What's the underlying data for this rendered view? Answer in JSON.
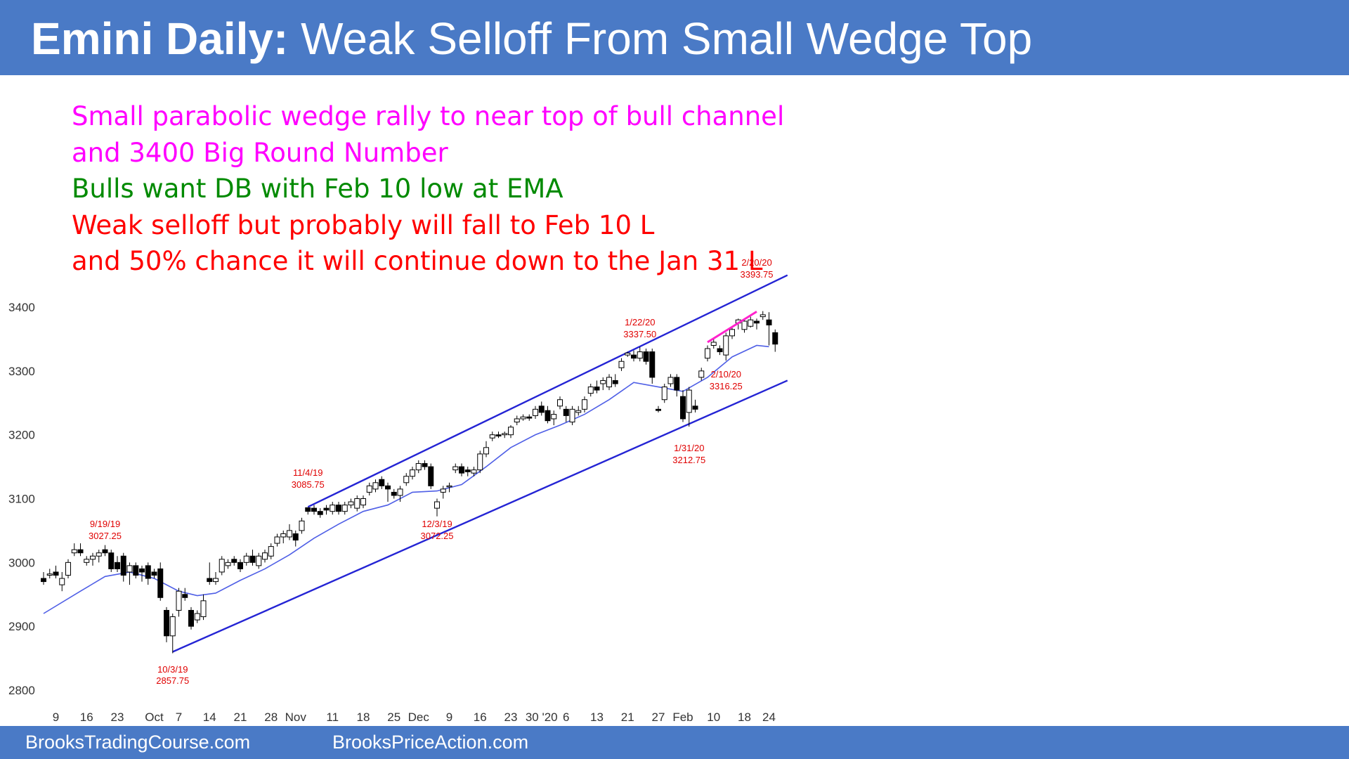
{
  "header": {
    "title_bold": "Emini Daily:",
    "title_rest": " Weak Selloff From Small Wedge Top"
  },
  "notes": [
    {
      "text": "Small parabolic wedge rally to near top of bull channel",
      "color": "#ff00ff"
    },
    {
      "text": "and 3400 Big Round Number",
      "color": "#ff00ff"
    },
    {
      "text": "Bulls want DB with Feb 10 low at EMA",
      "color": "#008a00"
    },
    {
      "text": "Weak selloff but probably will fall to Feb 10 L",
      "color": "#ff0000"
    },
    {
      "text": "and 50% chance it will continue down to the Jan 31 L",
      "color": "#ff0000"
    }
  ],
  "footer": {
    "left": "BrooksTradingCourse.com",
    "right": "BrooksPriceAction.com"
  },
  "colors": {
    "banner": "#4a7ac6",
    "channel": "#2424d4",
    "ema": "#4f5fe6",
    "wedge": "#ff22cc",
    "annotation": "#e00000",
    "bear_body": "#000000",
    "bull_body": "#ffffff"
  },
  "chart_data": {
    "type": "candlestick",
    "ylim": [
      2780,
      3440
    ],
    "yticks": [
      2800,
      2900,
      3000,
      3100,
      3200,
      3300,
      3400
    ],
    "xtick_labels": [
      {
        "label": "9",
        "bar": 2
      },
      {
        "label": "16",
        "bar": 7
      },
      {
        "label": "23",
        "bar": 12
      },
      {
        "label": "Oct",
        "bar": 18
      },
      {
        "label": "7",
        "bar": 22
      },
      {
        "label": "14",
        "bar": 27
      },
      {
        "label": "21",
        "bar": 32
      },
      {
        "label": "28",
        "bar": 37
      },
      {
        "label": "Nov",
        "bar": 41
      },
      {
        "label": "11",
        "bar": 47
      },
      {
        "label": "18",
        "bar": 52
      },
      {
        "label": "25",
        "bar": 57
      },
      {
        "label": "Dec",
        "bar": 61
      },
      {
        "label": "9",
        "bar": 66
      },
      {
        "label": "16",
        "bar": 71
      },
      {
        "label": "23",
        "bar": 76
      },
      {
        "label": "30 '20",
        "bar": 81
      },
      {
        "label": "6",
        "bar": 85
      },
      {
        "label": "13",
        "bar": 90
      },
      {
        "label": "21",
        "bar": 95
      },
      {
        "label": "27",
        "bar": 100
      },
      {
        "label": "Feb",
        "bar": 104
      },
      {
        "label": "10",
        "bar": 109
      },
      {
        "label": "18",
        "bar": 114
      },
      {
        "label": "24",
        "bar": 118
      }
    ],
    "candles": [
      [
        2975,
        2985,
        2965,
        2970
      ],
      [
        2980,
        2990,
        2975,
        2982
      ],
      [
        2985,
        2995,
        2975,
        2980
      ],
      [
        2965,
        2985,
        2955,
        2975
      ],
      [
        2980,
        3005,
        2975,
        3000
      ],
      [
        3015,
        3030,
        3010,
        3020
      ],
      [
        3020,
        3030,
        3010,
        3015
      ],
      [
        3000,
        3010,
        2995,
        3005
      ],
      [
        3005,
        3015,
        2995,
        3010
      ],
      [
        3010,
        3020,
        3000,
        3015
      ],
      [
        3020,
        3027.25,
        3010,
        3015
      ],
      [
        3015,
        3020,
        2985,
        2990
      ],
      [
        3000,
        3010,
        2985,
        2990
      ],
      [
        3010,
        3015,
        2970,
        2980
      ],
      [
        2985,
        3000,
        2965,
        2995
      ],
      [
        2995,
        3000,
        2975,
        2980
      ],
      [
        2990,
        2995,
        2970,
        2985
      ],
      [
        2995,
        3000,
        2965,
        2975
      ],
      [
        2985,
        2990,
        2975,
        2980
      ],
      [
        2990,
        3000,
        2940,
        2945
      ],
      [
        2925,
        2930,
        2875,
        2885
      ],
      [
        2885,
        2920,
        2857.75,
        2915
      ],
      [
        2925,
        2960,
        2915,
        2955
      ],
      [
        2950,
        2960,
        2940,
        2945
      ],
      [
        2925,
        2930,
        2895,
        2900
      ],
      [
        2910,
        2925,
        2905,
        2920
      ],
      [
        2915,
        2950,
        2910,
        2940
      ],
      [
        2975,
        3000,
        2965,
        2970
      ],
      [
        2970,
        2985,
        2965,
        2975
      ],
      [
        2985,
        3010,
        2980,
        3005
      ],
      [
        2995,
        3005,
        2990,
        3000
      ],
      [
        3005,
        3010,
        2995,
        3000
      ],
      [
        3000,
        3005,
        2985,
        2990
      ],
      [
        3000,
        3015,
        2995,
        3010
      ],
      [
        3010,
        3020,
        2995,
        3000
      ],
      [
        2995,
        3015,
        2990,
        3010
      ],
      [
        3005,
        3020,
        3000,
        3015
      ],
      [
        3010,
        3030,
        3005,
        3025
      ],
      [
        3030,
        3045,
        3025,
        3040
      ],
      [
        3040,
        3050,
        3030,
        3045
      ],
      [
        3040,
        3060,
        3035,
        3050
      ],
      [
        3045,
        3050,
        3025,
        3035
      ],
      [
        3050,
        3070,
        3045,
        3065
      ],
      [
        3085.75,
        3085.75,
        3075,
        3080
      ],
      [
        3085,
        3090,
        3075,
        3080
      ],
      [
        3080,
        3085,
        3070,
        3075
      ],
      [
        3085,
        3090,
        3075,
        3082
      ],
      [
        3080,
        3095,
        3075,
        3090
      ],
      [
        3090,
        3095,
        3075,
        3080
      ],
      [
        3080,
        3095,
        3075,
        3090
      ],
      [
        3090,
        3100,
        3085,
        3095
      ],
      [
        3085,
        3105,
        3080,
        3100
      ],
      [
        3090,
        3105,
        3085,
        3100
      ],
      [
        3110,
        3125,
        3105,
        3120
      ],
      [
        3115,
        3130,
        3110,
        3125
      ],
      [
        3130,
        3135,
        3115,
        3120
      ],
      [
        3120,
        3125,
        3095,
        3115
      ],
      [
        3110,
        3115,
        3100,
        3105
      ],
      [
        3105,
        3120,
        3095,
        3115
      ],
      [
        3125,
        3140,
        3120,
        3135
      ],
      [
        3135,
        3150,
        3130,
        3145
      ],
      [
        3145,
        3160,
        3140,
        3155
      ],
      [
        3155,
        3160,
        3145,
        3150
      ],
      [
        3150,
        3155,
        3115,
        3120
      ],
      [
        3085,
        3100,
        3072.25,
        3095
      ],
      [
        3110,
        3120,
        3100,
        3115
      ],
      [
        3120,
        3125,
        3110,
        3120
      ],
      [
        3145,
        3155,
        3140,
        3150
      ],
      [
        3150,
        3155,
        3135,
        3140
      ],
      [
        3145,
        3150,
        3135,
        3142
      ],
      [
        3140,
        3150,
        3135,
        3145
      ],
      [
        3145,
        3175,
        3140,
        3170
      ],
      [
        3170,
        3190,
        3165,
        3180
      ],
      [
        3195,
        3205,
        3190,
        3200
      ],
      [
        3200,
        3205,
        3195,
        3198
      ],
      [
        3200,
        3205,
        3195,
        3202
      ],
      [
        3200,
        3215,
        3195,
        3212
      ],
      [
        3220,
        3230,
        3215,
        3225
      ],
      [
        3225,
        3232,
        3222,
        3228
      ],
      [
        3228,
        3232,
        3222,
        3226
      ],
      [
        3230,
        3245,
        3225,
        3240
      ],
      [
        3245,
        3252,
        3230,
        3235
      ],
      [
        3238,
        3245,
        3218,
        3222
      ],
      [
        3225,
        3238,
        3215,
        3232
      ],
      [
        3245,
        3260,
        3240,
        3255
      ],
      [
        3240,
        3245,
        3220,
        3230
      ],
      [
        3220,
        3245,
        3215,
        3240
      ],
      [
        3235,
        3245,
        3230,
        3238
      ],
      [
        3240,
        3260,
        3235,
        3255
      ],
      [
        3265,
        3280,
        3260,
        3275
      ],
      [
        3275,
        3285,
        3265,
        3270
      ],
      [
        3280,
        3290,
        3270,
        3285
      ],
      [
        3275,
        3295,
        3270,
        3290
      ],
      [
        3285,
        3295,
        3275,
        3280
      ],
      [
        3305,
        3320,
        3300,
        3315
      ],
      [
        3325,
        3330,
        3322,
        3328
      ],
      [
        3325,
        3332,
        3315,
        3320
      ],
      [
        3320,
        3337.5,
        3315,
        3330
      ],
      [
        3330,
        3335,
        3310,
        3315
      ],
      [
        3330,
        3335,
        3280,
        3290
      ],
      [
        3240,
        3245,
        3235,
        3238
      ],
      [
        3255,
        3280,
        3250,
        3275
      ],
      [
        3280,
        3295,
        3275,
        3290
      ],
      [
        3290,
        3295,
        3260,
        3270
      ],
      [
        3260,
        3270,
        3220,
        3225
      ],
      [
        3235,
        3275,
        3212.75,
        3270
      ],
      [
        3245,
        3255,
        3235,
        3240
      ],
      [
        3290,
        3305,
        3285,
        3300
      ],
      [
        3320,
        3340,
        3315,
        3335
      ],
      [
        3340,
        3350,
        3335,
        3345
      ],
      [
        3335,
        3340,
        3325,
        3330
      ],
      [
        3325,
        3360,
        3316.25,
        3355
      ],
      [
        3355,
        3370,
        3350,
        3365
      ],
      [
        3375,
        3382,
        3365,
        3380
      ],
      [
        3365,
        3380,
        3360,
        3378
      ],
      [
        3370,
        3385,
        3368,
        3380
      ],
      [
        3378,
        3382,
        3365,
        3375
      ],
      [
        3385,
        3393.75,
        3380,
        3388
      ],
      [
        3380,
        3392,
        3340,
        3372
      ],
      [
        3360,
        3365,
        3330,
        3342
      ]
    ],
    "ema": [
      [
        0,
        2920
      ],
      [
        6,
        2955
      ],
      [
        10,
        2978
      ],
      [
        14,
        2985
      ],
      [
        18,
        2975
      ],
      [
        22,
        2955
      ],
      [
        25,
        2948
      ],
      [
        28,
        2952
      ],
      [
        32,
        2972
      ],
      [
        36,
        2990
      ],
      [
        40,
        3012
      ],
      [
        44,
        3038
      ],
      [
        48,
        3060
      ],
      [
        52,
        3080
      ],
      [
        56,
        3090
      ],
      [
        60,
        3110
      ],
      [
        64,
        3112
      ],
      [
        68,
        3122
      ],
      [
        72,
        3150
      ],
      [
        76,
        3180
      ],
      [
        80,
        3200
      ],
      [
        84,
        3215
      ],
      [
        88,
        3232
      ],
      [
        92,
        3255
      ],
      [
        96,
        3282
      ],
      [
        100,
        3275
      ],
      [
        104,
        3268
      ],
      [
        108,
        3290
      ],
      [
        112,
        3322
      ],
      [
        116,
        3340
      ],
      [
        118,
        3338
      ]
    ],
    "channel_upper": [
      [
        43,
        3087
      ],
      [
        121,
        3450
      ]
    ],
    "channel_lower": [
      [
        21,
        2860
      ],
      [
        121,
        3285
      ]
    ],
    "wedge_line": [
      [
        108,
        3345
      ],
      [
        116,
        3393
      ]
    ],
    "annotations": [
      {
        "date": "9/19/19",
        "price": "3027.25",
        "bar": 10
      },
      {
        "date": "10/3/19",
        "price": "2857.75",
        "bar": 21
      },
      {
        "date": "11/4/19",
        "price": "3085.75",
        "bar": 43
      },
      {
        "date": "12/3/19",
        "price": "3072.25",
        "bar": 64
      },
      {
        "date": "1/22/20",
        "price": "3337.50",
        "bar": 97
      },
      {
        "date": "1/31/20",
        "price": "3212.75",
        "bar": 105
      },
      {
        "date": "2/10/20",
        "price": "3316.25",
        "bar": 111
      },
      {
        "date": "2/20/20",
        "price": "3393.75",
        "bar": 116
      }
    ]
  }
}
